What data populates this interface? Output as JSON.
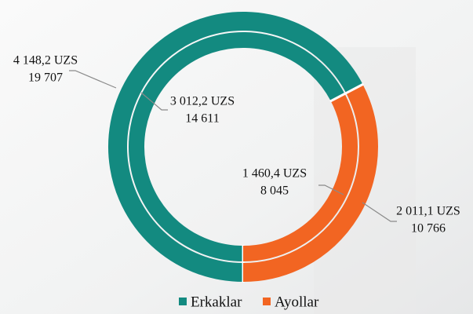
{
  "chart_data": {
    "type": "donut",
    "series": [
      {
        "name": "Erkaklar",
        "color": "#138a80",
        "values": [
          4148.2,
          3012.2
        ],
        "value_labels": [
          "4 148,2 UZS",
          "3 012,2 UZS"
        ],
        "counts": [
          19707,
          14611
        ],
        "count_labels": [
          "19 707",
          "14 611"
        ]
      },
      {
        "name": "Ayollar",
        "color": "#f26522",
        "values": [
          2011.1,
          1460.4
        ],
        "value_labels": [
          "2 011,1 UZS",
          "1 460,4 UZS"
        ],
        "counts": [
          10766,
          8045
        ],
        "count_labels": [
          "10 766",
          "8 045"
        ]
      }
    ],
    "legend": "bottom"
  }
}
